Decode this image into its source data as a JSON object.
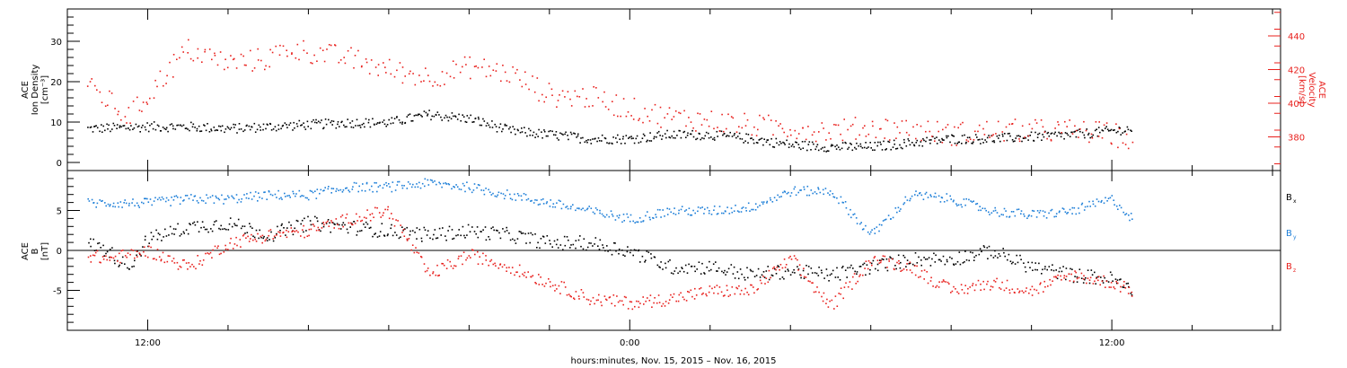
{
  "chart_data": [
    {
      "type": "scatter",
      "panel": "top",
      "left_axis_label": [
        "ACE",
        "Ion Density",
        "[cm⁻³]"
      ],
      "right_axis_label": [
        "ACE",
        "Velocity",
        "[km/s]"
      ],
      "y_left_ticks": [
        "0",
        "10",
        "20",
        "30"
      ],
      "y_left_range": [
        -2,
        38
      ],
      "y_right_ticks": [
        "380",
        "400",
        "420",
        "440"
      ],
      "y_right_range": [
        360,
        456
      ],
      "series": [
        {
          "axis": "left",
          "color": "#000000",
          "x": [
            -13.5,
            -12,
            -11,
            -10,
            -9,
            -8,
            -7,
            -6,
            -5,
            -4,
            -3,
            -2,
            -1,
            0,
            1,
            2,
            3,
            4,
            5,
            6,
            7,
            8,
            9,
            10,
            11,
            12,
            12.5
          ],
          "y": [
            8.5,
            9,
            9,
            8.5,
            9,
            9.5,
            10,
            10,
            12,
            11,
            8,
            7,
            6,
            6,
            7,
            7,
            6,
            4.5,
            4,
            4,
            5,
            6,
            6,
            6.5,
            7,
            8,
            8.5
          ]
        },
        {
          "axis": "right",
          "color": "#e8201d",
          "x": [
            -13.5,
            -13,
            -12.5,
            -12,
            -11.5,
            -11,
            -10,
            -9,
            -8.5,
            -8,
            -7,
            -6,
            -5,
            -4,
            -3,
            -2,
            -1,
            0,
            1,
            2,
            3,
            4,
            5,
            6,
            7,
            8,
            9,
            10,
            11,
            12,
            12.5
          ],
          "y": [
            410,
            402,
            392,
            405,
            420,
            432,
            424,
            427,
            433,
            431,
            427,
            420,
            416,
            422,
            418,
            405,
            404,
            397,
            392,
            390,
            387,
            386,
            384,
            386,
            385,
            382,
            384,
            384,
            384,
            382,
            378
          ]
        }
      ]
    },
    {
      "type": "scatter",
      "panel": "bottom",
      "left_axis_label": [
        "ACE",
        "B",
        "[nT]"
      ],
      "y_ticks": [
        "-5",
        "0",
        "5"
      ],
      "y_range": [
        -10,
        10
      ],
      "zero_line": true,
      "legend_position": "right",
      "series": [
        {
          "name": "Bx",
          "label_main": "B",
          "label_sub": "x",
          "color": "#000000",
          "x": [
            -13.5,
            -13,
            -12.5,
            -12,
            -11,
            -10,
            -9,
            -8,
            -7,
            -6,
            -5,
            -4,
            -3,
            -2,
            -1,
            0,
            1,
            2,
            3,
            4,
            5,
            6,
            7,
            8,
            9,
            10,
            11,
            12,
            12.5
          ],
          "y": [
            1,
            0,
            -2,
            1.5,
            3,
            3.5,
            2,
            3.5,
            3,
            2.5,
            2,
            2.5,
            2,
            1,
            1,
            0,
            -2,
            -2,
            -3,
            -2.5,
            -3,
            -2,
            -1,
            -1,
            0,
            -2,
            -3,
            -3.5,
            -5
          ]
        },
        {
          "name": "By",
          "label_main": "B",
          "label_sub": "y",
          "color": "#1e7fd8",
          "x": [
            -13.5,
            -12,
            -11,
            -10,
            -9,
            -8,
            -7,
            -6,
            -5,
            -4,
            -3,
            -2,
            -1,
            0,
            1,
            2,
            3,
            4,
            5,
            6,
            7,
            8,
            9,
            10,
            11,
            12,
            12.5
          ],
          "y": [
            6,
            6,
            6.5,
            6.5,
            7,
            7,
            8,
            8,
            8.5,
            8,
            7,
            6,
            5,
            4,
            5,
            5,
            5.5,
            7.5,
            7.5,
            2,
            7,
            6.5,
            5,
            4.5,
            5,
            6.5,
            4
          ]
        },
        {
          "name": "Bz",
          "label_main": "B",
          "label_sub": "z",
          "color": "#e8201d",
          "x": [
            -13.5,
            -13,
            -12,
            -11,
            -10,
            -9,
            -8,
            -7,
            -6,
            -5,
            -4,
            -3,
            -2,
            -1,
            0,
            1,
            2,
            3,
            4,
            5,
            6,
            7,
            8,
            9,
            10,
            11,
            12,
            12.5
          ],
          "y": [
            -0.5,
            -1,
            0,
            -2,
            1,
            2,
            2.5,
            4,
            5,
            -3,
            -0.5,
            -2,
            -4,
            -6,
            -6.5,
            -6,
            -5,
            -5,
            -1,
            -7,
            -1,
            -2,
            -5,
            -4,
            -5,
            -3,
            -4,
            -5
          ]
        }
      ]
    }
  ],
  "x_axis": {
    "label": "hours:minutes, Nov. 15, 2015 – Nov. 16, 2015",
    "range_hours": [
      -14,
      16.2
    ],
    "ticks": [
      {
        "hours": -12,
        "label": "12:00"
      },
      {
        "hours": 0,
        "label": "0:00"
      },
      {
        "hours": 12,
        "label": "12:00"
      }
    ]
  }
}
